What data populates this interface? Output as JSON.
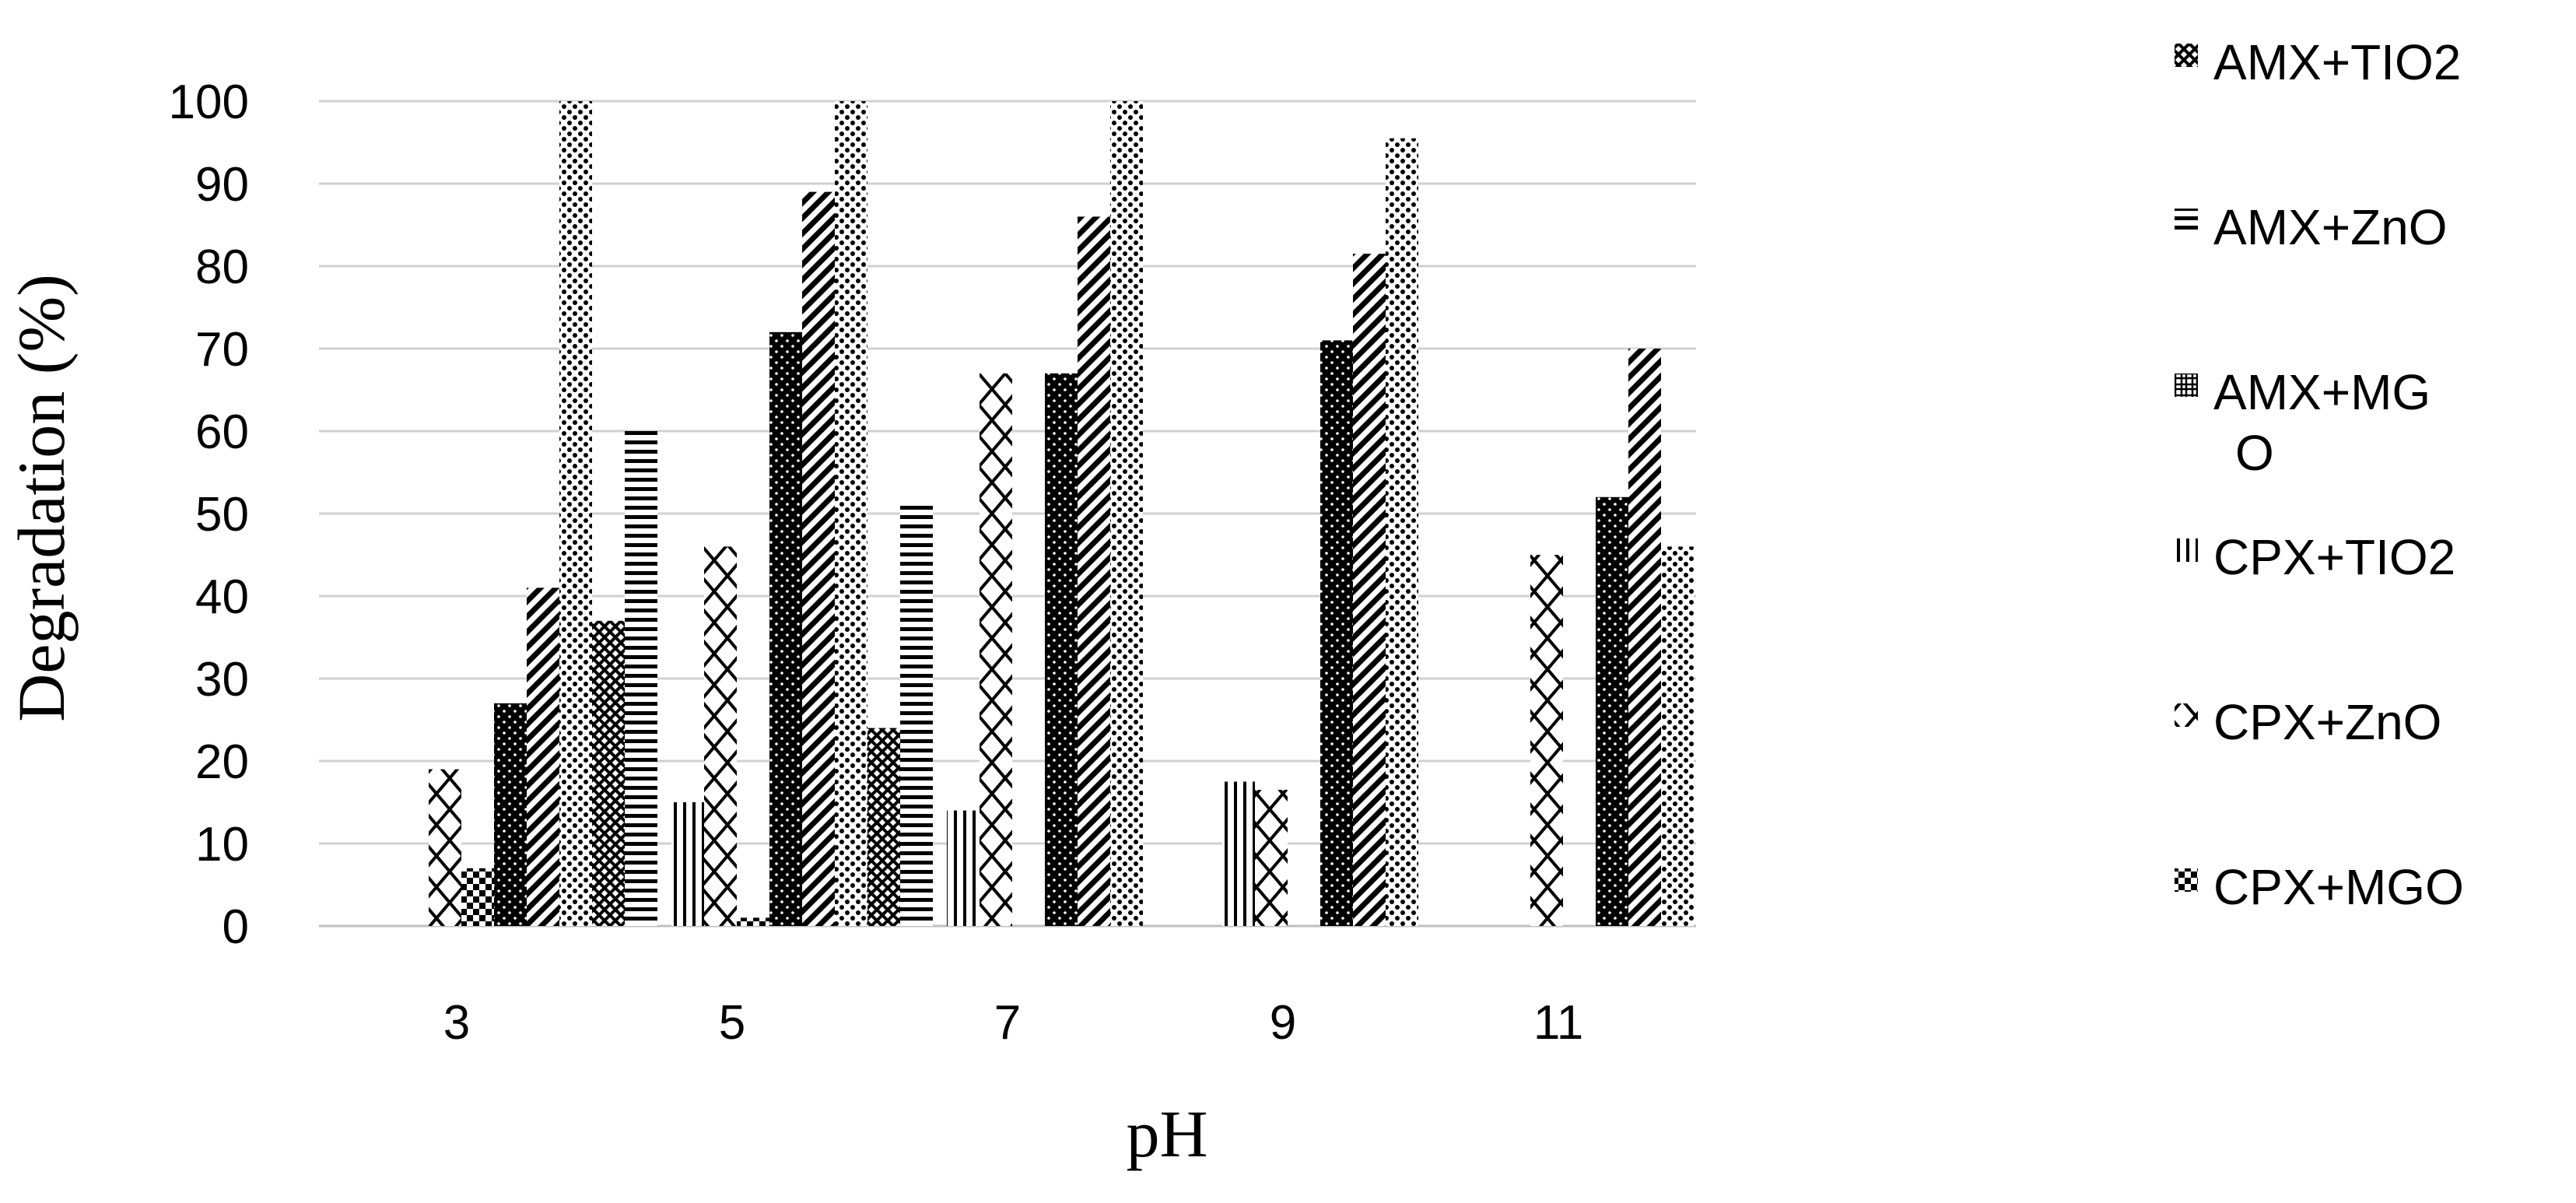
{
  "chart_data": {
    "type": "bar",
    "title": "",
    "xlabel": "pH",
    "ylabel": "Degradation (%)",
    "categories": [
      "3",
      "5",
      "7",
      "9",
      "11"
    ],
    "ylim": [
      0,
      100
    ],
    "yticks": [
      "0",
      "10",
      "20",
      "30",
      "40",
      "50",
      "60",
      "70",
      "80",
      "90",
      "100"
    ],
    "grid": "horizontal",
    "legend_position": "right",
    "series_order": [
      "CPX+TIO2",
      "CPX+ZnO",
      "CPX+MGO",
      "AMX+TIO2",
      "AMX+ZnO",
      "AMX+MGO",
      "AMX+TIO2 #2",
      "AMX+ZnO #2"
    ],
    "series": [
      {
        "name": "CPX+TIO2",
        "values": [
          0,
          15,
          14,
          17.5,
          0
        ],
        "pattern": "vlines"
      },
      {
        "name": "CPX+ZnO",
        "values": [
          19,
          46,
          67,
          16.5,
          45
        ],
        "pattern": "diamond"
      },
      {
        "name": "CPX+MGO",
        "values": [
          7,
          1,
          0,
          0,
          0
        ],
        "pattern": "checker"
      },
      {
        "name": "AMX+TIO2",
        "values": [
          27,
          72,
          67,
          71,
          52
        ],
        "pattern": "dots-dark"
      },
      {
        "name": "AMX+ZnO",
        "values": [
          41,
          89,
          86,
          81.5,
          70
        ],
        "pattern": "diag"
      },
      {
        "name": "AMX+MGO",
        "values": [
          100,
          100,
          100,
          95.5,
          46
        ],
        "pattern": "dots-light"
      },
      {
        "name": "",
        "values": [
          37,
          24,
          0,
          0,
          0
        ],
        "pattern": "crosshatch"
      },
      {
        "name": "",
        "values": [
          60,
          51,
          0,
          0,
          0
        ],
        "pattern": "hlines"
      }
    ]
  },
  "legend": [
    {
      "label": "AMX+TIO2",
      "marker": "crosshatch"
    },
    {
      "label": "AMX+ZnO",
      "marker": "hlines"
    },
    {
      "label": "AMX+MG",
      "label2": "O",
      "marker": "grid"
    },
    {
      "label": "CPX+TIO2",
      "marker": "vlines"
    },
    {
      "label": "CPX+ZnO",
      "marker": "diamond"
    },
    {
      "label": "CPX+MGO",
      "marker": "checker"
    }
  ]
}
